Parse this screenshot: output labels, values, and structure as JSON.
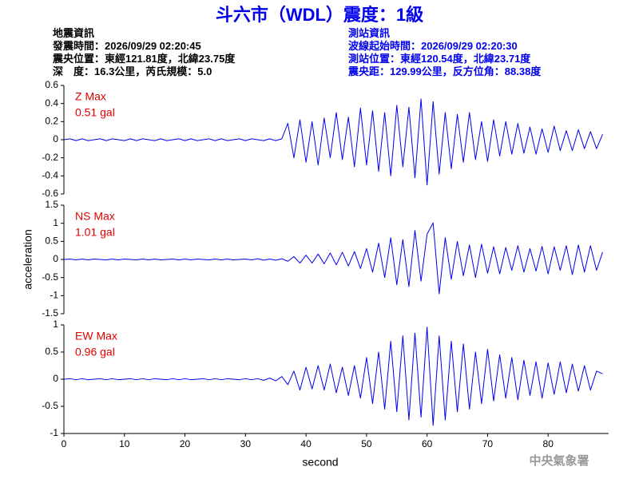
{
  "header": {
    "title": "斗六市（WDL）震度：1級",
    "left": [
      "地震資訊",
      "發震時間：2026/09/29 02:20:45",
      "震央位置：東經121.81度，北緯23.75度",
      "深　度：16.3公里，芮氏規模：5.0"
    ],
    "right": [
      "測站資訊",
      "波線起始時間：2026/09/29 02:20:30",
      "測站位置：東經120.54度，北緯23.71度",
      "震央距：129.99公里，反方位角：88.38度"
    ],
    "footer": "中央氣象署"
  },
  "chart_data": [
    {
      "type": "line",
      "annotations": [
        "Z Max",
        "0.51 gal"
      ],
      "annotation_color": "#e00000",
      "x": [
        0,
        1,
        2,
        3,
        4,
        5,
        6,
        7,
        8,
        9,
        10,
        11,
        12,
        13,
        14,
        15,
        16,
        17,
        18,
        19,
        20,
        21,
        22,
        23,
        24,
        25,
        26,
        27,
        28,
        29,
        30,
        31,
        32,
        33,
        34,
        35,
        36,
        37,
        38,
        39,
        40,
        41,
        42,
        43,
        44,
        45,
        46,
        47,
        48,
        49,
        50,
        51,
        52,
        53,
        54,
        55,
        56,
        57,
        58,
        59,
        60,
        61,
        62,
        63,
        64,
        65,
        66,
        67,
        68,
        69,
        70,
        71,
        72,
        73,
        74,
        75,
        76,
        77,
        78,
        79,
        80,
        81,
        82,
        83,
        84,
        85,
        86,
        87,
        88,
        89
      ],
      "series": [
        {
          "color": "#0000ee",
          "values": [
            0,
            0.01,
            -0.01,
            0.01,
            -0.01,
            0,
            0.01,
            -0.01,
            0.01,
            0,
            -0.01,
            0.01,
            -0.01,
            0.01,
            0,
            -0.01,
            0.01,
            -0.01,
            0,
            0.01,
            -0.01,
            0.01,
            -0.01,
            0,
            0.01,
            -0.01,
            0.01,
            -0.01,
            0,
            0.01,
            -0.01,
            0.01,
            0,
            -0.01,
            0.01,
            -0.01,
            0.01,
            0.18,
            -0.2,
            0.22,
            -0.25,
            0.2,
            -0.28,
            0.24,
            -0.2,
            0.3,
            -0.22,
            0.25,
            -0.3,
            0.35,
            -0.28,
            0.32,
            -0.35,
            0.3,
            -0.4,
            0.38,
            -0.3,
            0.36,
            -0.42,
            0.45,
            -0.5,
            0.42,
            -0.38,
            0.3,
            -0.32,
            0.28,
            -0.25,
            0.3,
            -0.22,
            0.2,
            -0.24,
            0.22,
            -0.18,
            0.2,
            -0.16,
            0.18,
            -0.15,
            0.14,
            -0.16,
            0.12,
            -0.14,
            0.15,
            -0.12,
            0.1,
            -0.12,
            0.11,
            -0.1,
            0.09,
            -0.1,
            0.06
          ]
        }
      ],
      "xlim": [
        0,
        90
      ],
      "ylim": [
        -0.6,
        0.6
      ],
      "yticks": [
        -0.6,
        -0.4,
        -0.2,
        0,
        0.2,
        0.4,
        0.6
      ]
    },
    {
      "type": "line",
      "annotations": [
        "NS Max",
        "1.01 gal"
      ],
      "annotation_color": "#e00000",
      "ylabel": "acceleration",
      "x": [
        0,
        1,
        2,
        3,
        4,
        5,
        6,
        7,
        8,
        9,
        10,
        11,
        12,
        13,
        14,
        15,
        16,
        17,
        18,
        19,
        20,
        21,
        22,
        23,
        24,
        25,
        26,
        27,
        28,
        29,
        30,
        31,
        32,
        33,
        34,
        35,
        36,
        37,
        38,
        39,
        40,
        41,
        42,
        43,
        44,
        45,
        46,
        47,
        48,
        49,
        50,
        51,
        52,
        53,
        54,
        55,
        56,
        57,
        58,
        59,
        60,
        61,
        62,
        63,
        64,
        65,
        66,
        67,
        68,
        69,
        70,
        71,
        72,
        73,
        74,
        75,
        76,
        77,
        78,
        79,
        80,
        81,
        82,
        83,
        84,
        85,
        86,
        87,
        88,
        89
      ],
      "series": [
        {
          "color": "#0000ee",
          "values": [
            0,
            0.01,
            -0.01,
            0.01,
            -0.01,
            0.01,
            0,
            -0.01,
            0.01,
            -0.01,
            0.01,
            0,
            -0.01,
            0.01,
            -0.01,
            0.01,
            -0.01,
            0,
            0.01,
            -0.01,
            0.01,
            -0.01,
            0.01,
            0,
            -0.01,
            0.01,
            -0.01,
            0.01,
            -0.01,
            0,
            0.01,
            -0.01,
            0.02,
            -0.02,
            0.01,
            -0.02,
            0.02,
            -0.05,
            0.08,
            -0.1,
            0.12,
            -0.1,
            0.15,
            -0.12,
            0.18,
            -0.15,
            0.2,
            -0.18,
            0.22,
            -0.25,
            0.3,
            -0.35,
            0.45,
            -0.5,
            0.6,
            -0.7,
            0.55,
            -0.75,
            0.8,
            -0.6,
            0.7,
            1.01,
            -0.95,
            0.6,
            -0.55,
            0.5,
            -0.45,
            0.4,
            -0.5,
            0.42,
            -0.38,
            0.35,
            -0.4,
            0.33,
            -0.3,
            0.38,
            -0.35,
            0.3,
            -0.32,
            0.36,
            -0.4,
            0.35,
            -0.3,
            0.38,
            -0.42,
            0.4,
            -0.35,
            0.38,
            -0.3,
            0.2
          ]
        }
      ],
      "xlim": [
        0,
        90
      ],
      "ylim": [
        -1.5,
        1.5
      ],
      "yticks": [
        -1.5,
        -1,
        -0.5,
        0,
        0.5,
        1,
        1.5
      ]
    },
    {
      "type": "line",
      "annotations": [
        "EW Max",
        "0.96 gal"
      ],
      "annotation_color": "#e00000",
      "xlabel": "second",
      "x": [
        0,
        1,
        2,
        3,
        4,
        5,
        6,
        7,
        8,
        9,
        10,
        11,
        12,
        13,
        14,
        15,
        16,
        17,
        18,
        19,
        20,
        21,
        22,
        23,
        24,
        25,
        26,
        27,
        28,
        29,
        30,
        31,
        32,
        33,
        34,
        35,
        36,
        37,
        38,
        39,
        40,
        41,
        42,
        43,
        44,
        45,
        46,
        47,
        48,
        49,
        50,
        51,
        52,
        53,
        54,
        55,
        56,
        57,
        58,
        59,
        60,
        61,
        62,
        63,
        64,
        65,
        66,
        67,
        68,
        69,
        70,
        71,
        72,
        73,
        74,
        75,
        76,
        77,
        78,
        79,
        80,
        81,
        82,
        83,
        84,
        85,
        86,
        87,
        88,
        89
      ],
      "series": [
        {
          "color": "#0000ee",
          "values": [
            0,
            0.01,
            -0.01,
            0.01,
            -0.01,
            0,
            0.01,
            -0.01,
            0.01,
            -0.01,
            0,
            0.01,
            -0.01,
            0.01,
            -0.01,
            0.01,
            0,
            -0.01,
            0.01,
            -0.01,
            0.01,
            -0.01,
            0,
            0.01,
            -0.01,
            0.01,
            -0.01,
            0.01,
            0,
            -0.01,
            0.01,
            -0.01,
            0.01,
            -0.02,
            0.02,
            -0.03,
            0.05,
            -0.1,
            0.15,
            -0.2,
            0.22,
            -0.18,
            0.25,
            -0.2,
            0.28,
            -0.25,
            0.22,
            -0.3,
            0.25,
            -0.35,
            0.4,
            -0.45,
            0.5,
            -0.55,
            0.7,
            -0.6,
            0.8,
            -0.75,
            0.85,
            -0.7,
            0.96,
            -0.85,
            0.8,
            -0.75,
            0.7,
            -0.6,
            0.65,
            -0.55,
            0.5,
            -0.45,
            0.55,
            -0.4,
            0.45,
            -0.35,
            0.4,
            -0.38,
            0.35,
            -0.3,
            0.32,
            -0.35,
            0.3,
            -0.28,
            0.32,
            -0.25,
            0.28,
            -0.22,
            0.25,
            -0.2,
            0.15,
            0.1
          ]
        }
      ],
      "xlim": [
        0,
        90
      ],
      "ylim": [
        -1,
        1
      ],
      "yticks": [
        -1,
        -0.5,
        0,
        0.5,
        1
      ],
      "xticks": [
        0,
        10,
        20,
        30,
        40,
        50,
        60,
        70,
        80
      ]
    }
  ]
}
